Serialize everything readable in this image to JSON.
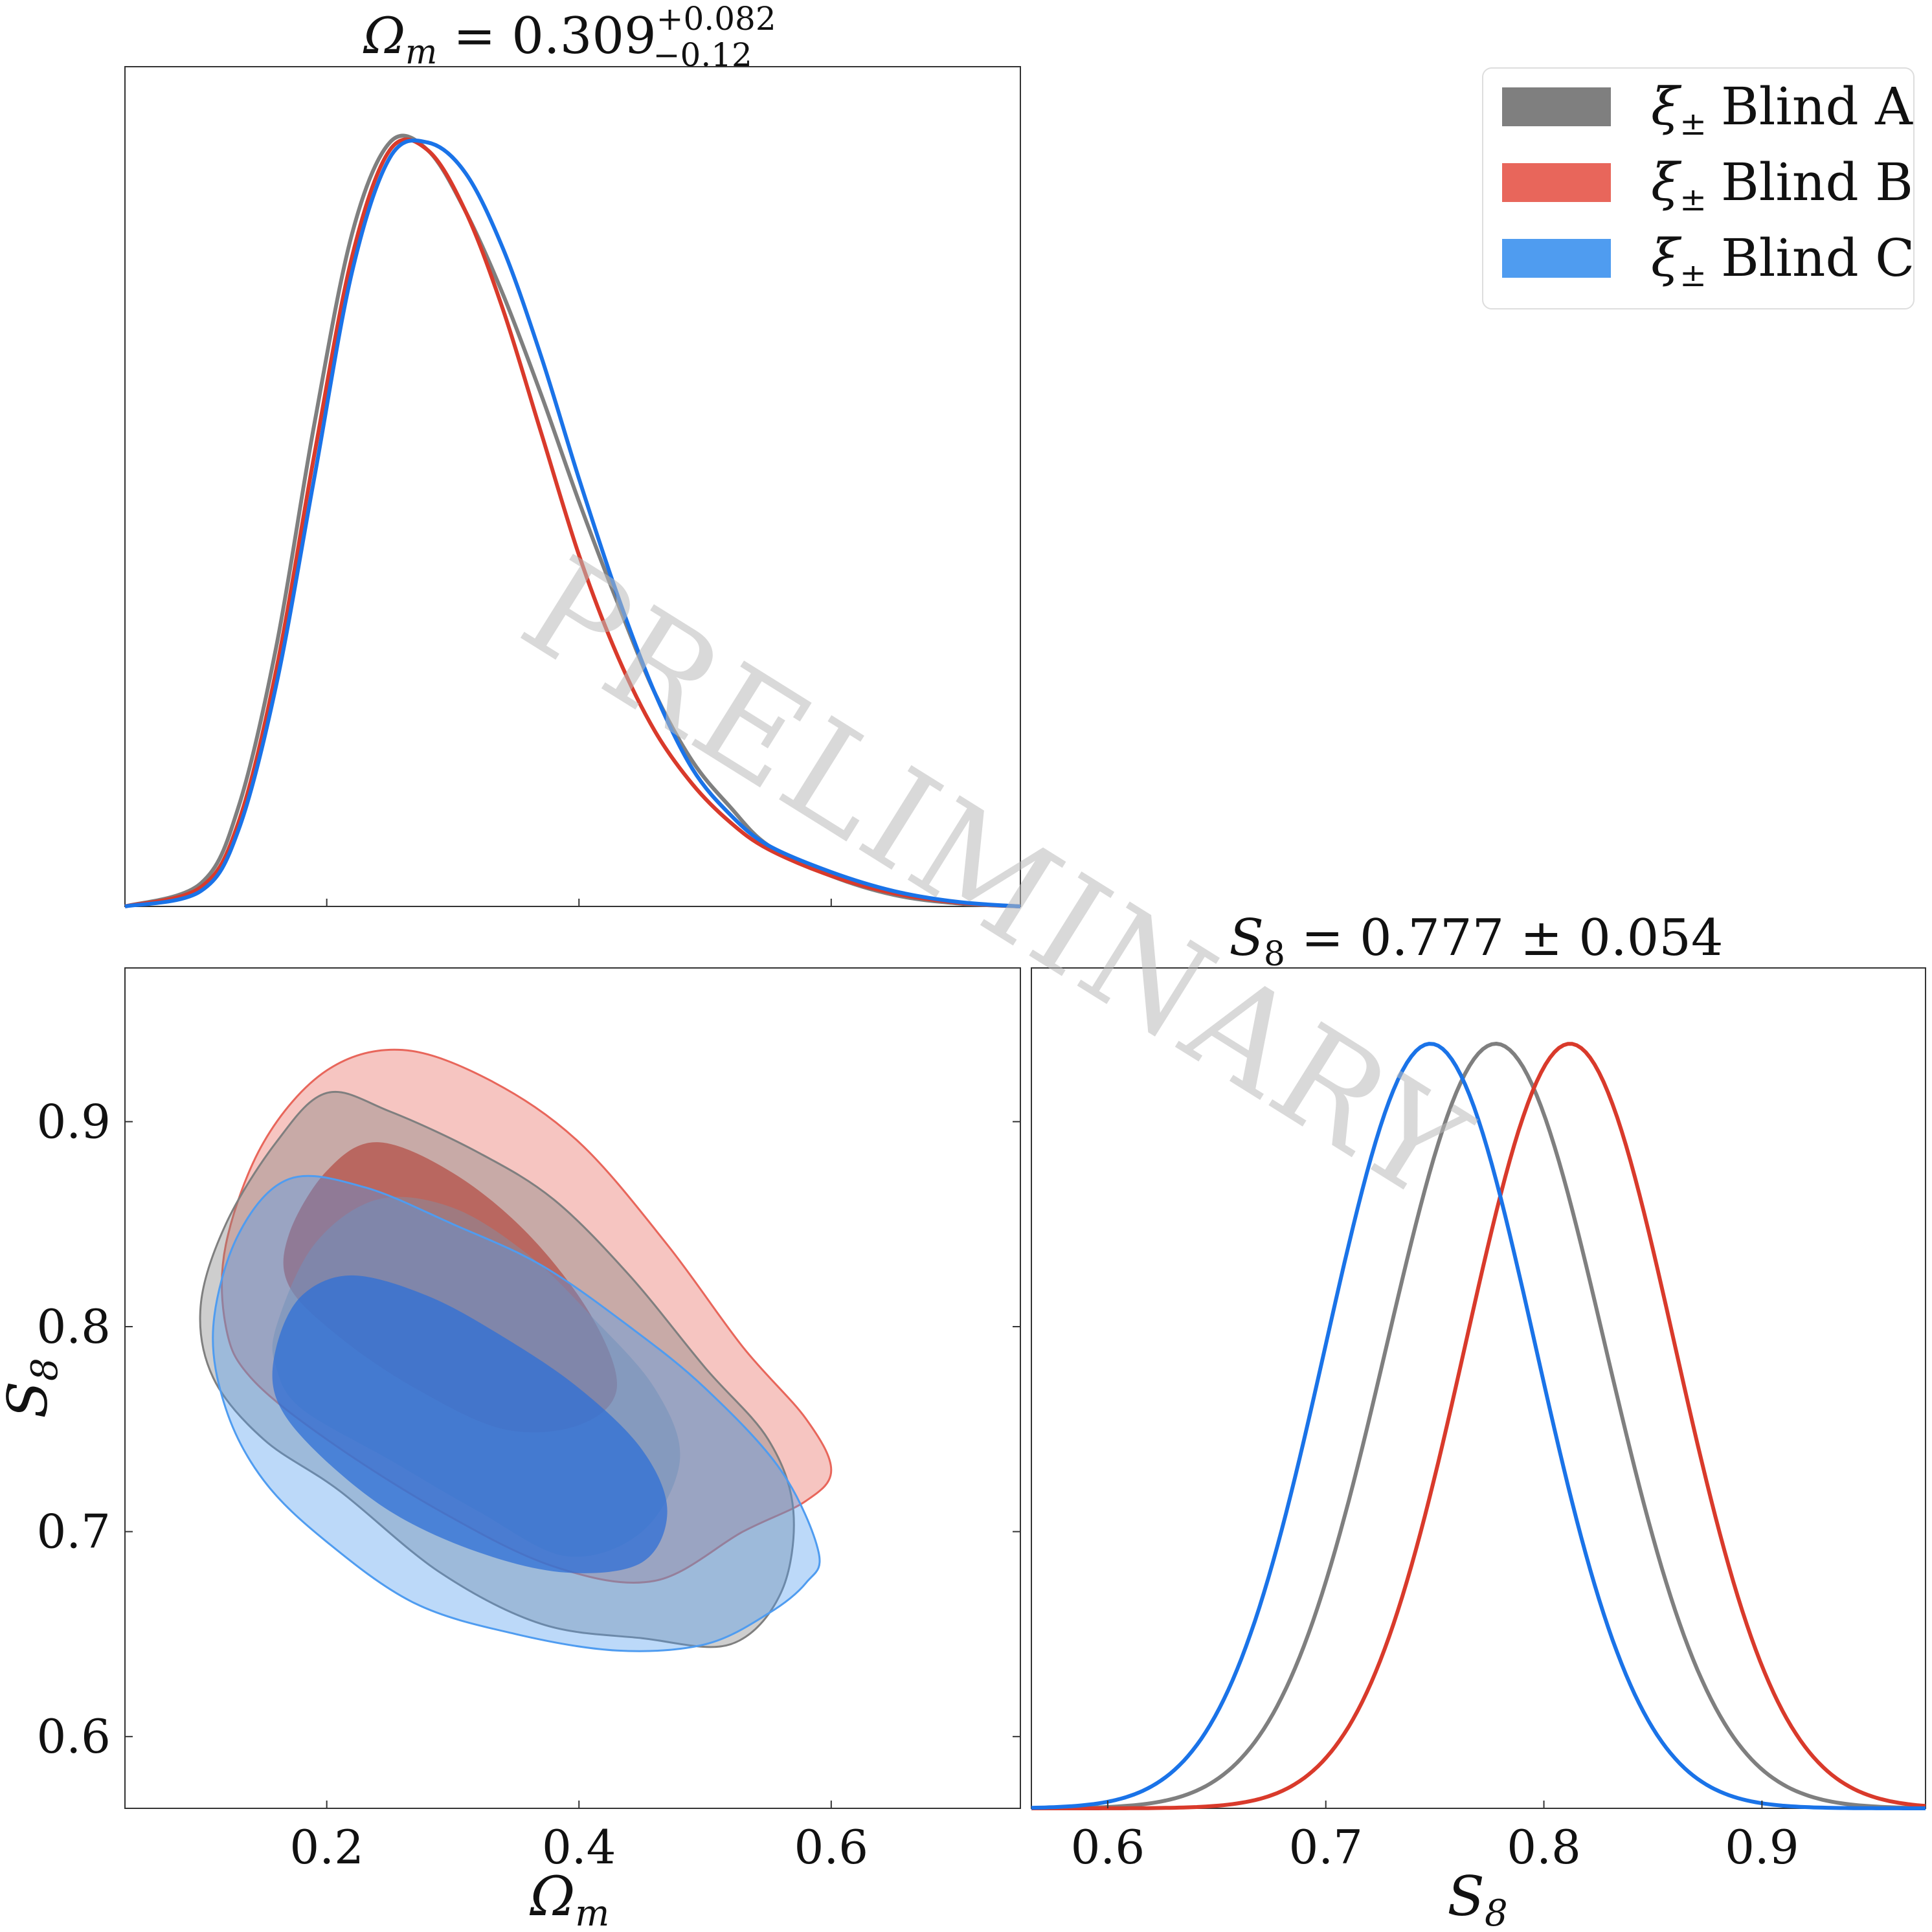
{
  "figure": {
    "watermark": "PRELIMINARY",
    "colors": {
      "blind_a": "#7f7f7f",
      "blind_b": "#d93a2b",
      "blind_c": "#1a73e8"
    }
  },
  "legend": {
    "placement": "top-right",
    "entries": [
      {
        "symbol": "ξ",
        "subscript": "±",
        "text": "Blind A",
        "color": "#7f7f7f"
      },
      {
        "symbol": "ξ",
        "subscript": "±",
        "text": "Blind B",
        "color": "#e8665b"
      },
      {
        "symbol": "ξ",
        "subscript": "±",
        "text": "Blind C",
        "color": "#4f9cf0"
      }
    ]
  },
  "chart_data": [
    {
      "type": "line",
      "panel": "omega_m-marginal",
      "title": {
        "base": "Ω",
        "sub": "m",
        "rest": " = 0.309",
        "sup": "+0.082",
        "sub2": "−0.12"
      },
      "xlim": [
        0.04,
        0.75
      ],
      "x_ticks": [
        0.2,
        0.4,
        0.6
      ],
      "grid": false,
      "series": [
        {
          "name": "ξ± Blind A",
          "color": "#7f7f7f",
          "x": [
            0.04,
            0.1,
            0.13,
            0.16,
            0.19,
            0.22,
            0.25,
            0.28,
            0.31,
            0.34,
            0.37,
            0.4,
            0.43,
            0.46,
            0.49,
            0.52,
            0.55,
            0.6,
            0.65,
            0.7,
            0.75
          ],
          "y": [
            0.0,
            0.03,
            0.13,
            0.34,
            0.63,
            0.88,
            1.0,
            0.99,
            0.91,
            0.8,
            0.67,
            0.53,
            0.4,
            0.28,
            0.19,
            0.13,
            0.08,
            0.04,
            0.015,
            0.004,
            0.0
          ]
        },
        {
          "name": "ξ± Blind B",
          "color": "#d93a2b",
          "x": [
            0.04,
            0.1,
            0.13,
            0.16,
            0.19,
            0.22,
            0.25,
            0.28,
            0.31,
            0.34,
            0.37,
            0.4,
            0.43,
            0.46,
            0.49,
            0.52,
            0.55,
            0.6,
            0.65,
            0.7,
            0.75
          ],
          "y": [
            0.0,
            0.025,
            0.11,
            0.31,
            0.59,
            0.85,
            0.99,
            0.99,
            0.91,
            0.78,
            0.62,
            0.46,
            0.33,
            0.23,
            0.16,
            0.11,
            0.075,
            0.04,
            0.017,
            0.005,
            0.0
          ]
        },
        {
          "name": "ξ± Blind C",
          "color": "#1a73e8",
          "x": [
            0.04,
            0.1,
            0.13,
            0.16,
            0.19,
            0.22,
            0.25,
            0.28,
            0.31,
            0.34,
            0.37,
            0.4,
            0.43,
            0.46,
            0.49,
            0.52,
            0.55,
            0.6,
            0.65,
            0.7,
            0.75
          ],
          "y": [
            0.0,
            0.02,
            0.1,
            0.29,
            0.56,
            0.83,
            0.98,
            1.0,
            0.96,
            0.86,
            0.72,
            0.56,
            0.41,
            0.28,
            0.18,
            0.12,
            0.08,
            0.045,
            0.02,
            0.006,
            0.0
          ]
        }
      ]
    },
    {
      "type": "area",
      "panel": "omega_m-s8-contours",
      "xlabel": {
        "base": "Ω",
        "sub": "m"
      },
      "ylabel": {
        "base": "S",
        "sub": "8"
      },
      "xlim": [
        0.04,
        0.75
      ],
      "ylim": [
        0.565,
        0.975
      ],
      "x_ticks": [
        0.2,
        0.4,
        0.6
      ],
      "y_ticks": [
        0.6,
        0.7,
        0.8,
        0.9
      ],
      "grid": false,
      "series": [
        {
          "name": "ξ± Blind B",
          "color": "#e8665b",
          "outer": [
            [
              0.12,
              0.84
            ],
            [
              0.15,
              0.89
            ],
            [
              0.2,
              0.925
            ],
            [
              0.26,
              0.935
            ],
            [
              0.33,
              0.92
            ],
            [
              0.4,
              0.89
            ],
            [
              0.47,
              0.84
            ],
            [
              0.53,
              0.79
            ],
            [
              0.58,
              0.755
            ],
            [
              0.6,
              0.73
            ],
            [
              0.58,
              0.715
            ],
            [
              0.53,
              0.7
            ],
            [
              0.46,
              0.676
            ],
            [
              0.38,
              0.683
            ],
            [
              0.29,
              0.71
            ],
            [
              0.2,
              0.745
            ],
            [
              0.14,
              0.775
            ],
            [
              0.12,
              0.8
            ]
          ],
          "inner": [
            [
              0.17,
              0.845
            ],
            [
              0.2,
              0.876
            ],
            [
              0.24,
              0.89
            ],
            [
              0.3,
              0.875
            ],
            [
              0.36,
              0.845
            ],
            [
              0.41,
              0.805
            ],
            [
              0.43,
              0.77
            ],
            [
              0.4,
              0.752
            ],
            [
              0.34,
              0.75
            ],
            [
              0.27,
              0.77
            ],
            [
              0.21,
              0.795
            ],
            [
              0.17,
              0.82
            ]
          ]
        },
        {
          "name": "ξ± Blind A",
          "color": "#7f7f7f",
          "outer": [
            [
              0.1,
              0.81
            ],
            [
              0.12,
              0.85
            ],
            [
              0.16,
              0.89
            ],
            [
              0.2,
              0.914
            ],
            [
              0.25,
              0.905
            ],
            [
              0.32,
              0.885
            ],
            [
              0.38,
              0.862
            ],
            [
              0.44,
              0.825
            ],
            [
              0.5,
              0.78
            ],
            [
              0.55,
              0.745
            ],
            [
              0.57,
              0.71
            ],
            [
              0.56,
              0.67
            ],
            [
              0.52,
              0.645
            ],
            [
              0.45,
              0.648
            ],
            [
              0.37,
              0.655
            ],
            [
              0.29,
              0.68
            ],
            [
              0.21,
              0.72
            ],
            [
              0.15,
              0.745
            ],
            [
              0.11,
              0.775
            ]
          ],
          "inner": [
            [
              0.16,
              0.8
            ],
            [
              0.19,
              0.84
            ],
            [
              0.24,
              0.862
            ],
            [
              0.3,
              0.858
            ],
            [
              0.36,
              0.835
            ],
            [
              0.41,
              0.805
            ],
            [
              0.46,
              0.77
            ],
            [
              0.48,
              0.735
            ],
            [
              0.45,
              0.7
            ],
            [
              0.39,
              0.688
            ],
            [
              0.32,
              0.71
            ],
            [
              0.25,
              0.735
            ],
            [
              0.18,
              0.76
            ],
            [
              0.16,
              0.78
            ]
          ]
        },
        {
          "name": "ξ± Blind C",
          "color": "#4f9cf0",
          "outer": [
            [
              0.11,
              0.8
            ],
            [
              0.13,
              0.845
            ],
            [
              0.17,
              0.872
            ],
            [
              0.23,
              0.868
            ],
            [
              0.3,
              0.85
            ],
            [
              0.37,
              0.83
            ],
            [
              0.44,
              0.8
            ],
            [
              0.5,
              0.77
            ],
            [
              0.56,
              0.73
            ],
            [
              0.59,
              0.69
            ],
            [
              0.58,
              0.675
            ],
            [
              0.55,
              0.66
            ],
            [
              0.5,
              0.645
            ],
            [
              0.43,
              0.642
            ],
            [
              0.35,
              0.65
            ],
            [
              0.27,
              0.665
            ],
            [
              0.2,
              0.695
            ],
            [
              0.15,
              0.725
            ],
            [
              0.12,
              0.76
            ]
          ],
          "inner": [
            [
              0.16,
              0.79
            ],
            [
              0.18,
              0.815
            ],
            [
              0.22,
              0.825
            ],
            [
              0.28,
              0.815
            ],
            [
              0.34,
              0.795
            ],
            [
              0.4,
              0.77
            ],
            [
              0.45,
              0.74
            ],
            [
              0.47,
              0.71
            ],
            [
              0.45,
              0.685
            ],
            [
              0.39,
              0.68
            ],
            [
              0.32,
              0.69
            ],
            [
              0.25,
              0.71
            ],
            [
              0.19,
              0.74
            ],
            [
              0.16,
              0.765
            ]
          ]
        }
      ]
    },
    {
      "type": "line",
      "panel": "s8-marginal",
      "title": {
        "base": "S",
        "sub": "8",
        "rest": " = 0.777 ± 0.054"
      },
      "xlabel": {
        "base": "S",
        "sub": "8"
      },
      "xlim": [
        0.565,
        0.975
      ],
      "x_ticks": [
        0.6,
        0.7,
        0.8,
        0.9
      ],
      "grid": false,
      "series": [
        {
          "name": "ξ± Blind A",
          "color": "#7f7f7f",
          "mean": 0.778,
          "sigma": 0.05
        },
        {
          "name": "ξ± Blind B",
          "color": "#d93a2b",
          "mean": 0.812,
          "sigma": 0.048
        },
        {
          "name": "ξ± Blind C",
          "color": "#1a73e8",
          "mean": 0.748,
          "sigma": 0.048
        }
      ]
    }
  ]
}
